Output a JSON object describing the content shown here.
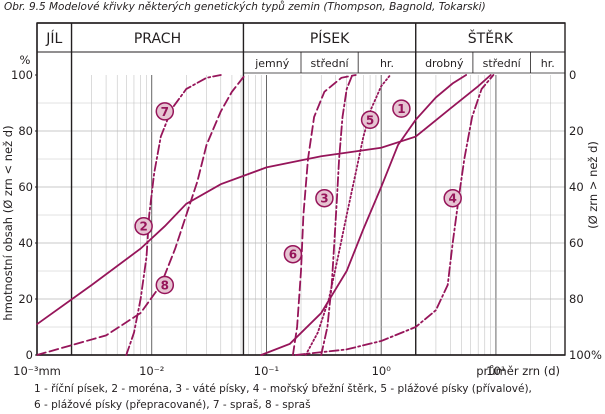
{
  "caption": "Obr. 9.5 Modelové křivky některých genetických typů zemin (Thompson, Bagnold, Tokarski)",
  "legend_lines": [
    "1 - říční písek, 2 - moréna, 3 - váté písky, 4 - mořský břežní štěrk, 5 - plážové písky (přívalové),",
    "6 - plážové písky (přepracované), 7 - spraš, 8 - spraš"
  ],
  "colors": {
    "curve": "#96155a",
    "grid": "#b8b8b8",
    "axis": "#231f20",
    "marker_fill": "#e6c4d2"
  },
  "chart_data": {
    "type": "line",
    "title": "",
    "xlabel": "průměr zrn (d)",
    "ylabel": "hmotnostní obsah (Ø zrn < než d)",
    "ylabel_right": "(Ø zrn > než d)",
    "x_scale": "log",
    "xlim": [
      0.001,
      40
    ],
    "ylim": [
      0,
      100
    ],
    "x_ticks": [
      {
        "value": 0.001,
        "label": "10⁻³mm"
      },
      {
        "value": 0.01,
        "label": "10⁻²"
      },
      {
        "value": 0.1,
        "label": "10⁻¹"
      },
      {
        "value": 1,
        "label": "10⁰"
      },
      {
        "value": 10,
        "label": "10¹"
      }
    ],
    "y_ticks": [
      0,
      20,
      40,
      60,
      80,
      100
    ],
    "y_ticks_right": [
      "100%",
      "80",
      "60",
      "40",
      "20",
      "0"
    ],
    "y_unit": "%",
    "grid": true,
    "fraction_header": {
      "main": [
        {
          "label": "JÍL",
          "from": 0.001,
          "to": 0.002
        },
        {
          "label": "PRACH",
          "from": 0.002,
          "to": 0.063
        },
        {
          "label": "PÍSEK",
          "from": 0.063,
          "to": 2
        },
        {
          "label": "ŠTĚRK",
          "from": 2,
          "to": 40
        }
      ],
      "sub": [
        {
          "label": "jemný",
          "from": 0.063,
          "to": 0.2
        },
        {
          "label": "střední",
          "from": 0.2,
          "to": 0.63
        },
        {
          "label": "hr.",
          "from": 0.63,
          "to": 2
        },
        {
          "label": "drobný",
          "from": 2,
          "to": 6.3
        },
        {
          "label": "střední",
          "from": 6.3,
          "to": 20
        },
        {
          "label": "hr.",
          "from": 20,
          "to": 40
        }
      ]
    },
    "series": [
      {
        "name": "1",
        "label": "říční písek",
        "style": "solid",
        "points": [
          [
            0.09,
            0
          ],
          [
            0.16,
            4
          ],
          [
            0.3,
            15
          ],
          [
            0.5,
            30
          ],
          [
            0.7,
            45
          ],
          [
            1.0,
            60
          ],
          [
            1.4,
            75
          ],
          [
            2.0,
            84
          ],
          [
            3.0,
            92
          ],
          [
            4.2,
            97
          ],
          [
            5.5,
            100
          ]
        ],
        "marker": {
          "x": 1.5,
          "y": 88
        }
      },
      {
        "name": "2",
        "label": "moréna",
        "style": "solid",
        "points": [
          [
            0.001,
            11
          ],
          [
            0.003,
            25
          ],
          [
            0.008,
            38
          ],
          [
            0.013,
            46
          ],
          [
            0.02,
            54
          ],
          [
            0.04,
            61
          ],
          [
            0.1,
            67
          ],
          [
            0.3,
            71
          ],
          [
            1.0,
            74
          ],
          [
            2.0,
            78
          ],
          [
            4.0,
            88
          ],
          [
            7.0,
            96
          ],
          [
            9.0,
            100
          ]
        ],
        "marker": {
          "x": 0.0085,
          "y": 46
        }
      },
      {
        "name": "3",
        "label": "váté písky",
        "style": "dashdot",
        "points": [
          [
            0.3,
            0
          ],
          [
            0.34,
            10
          ],
          [
            0.37,
            25
          ],
          [
            0.39,
            40
          ],
          [
            0.41,
            55
          ],
          [
            0.43,
            70
          ],
          [
            0.46,
            85
          ],
          [
            0.5,
            95
          ],
          [
            0.56,
            100
          ]
        ],
        "marker": {
          "x": 0.32,
          "y": 56
        }
      },
      {
        "name": "4",
        "label": "mořský břežní štěrk",
        "style": "dashdot",
        "points": [
          [
            0.18,
            0
          ],
          [
            0.5,
            2
          ],
          [
            1.0,
            5
          ],
          [
            2.0,
            10
          ],
          [
            3.0,
            16
          ],
          [
            3.8,
            25
          ],
          [
            4.2,
            40
          ],
          [
            4.7,
            55
          ],
          [
            5.3,
            70
          ],
          [
            6.2,
            85
          ],
          [
            7.5,
            95
          ],
          [
            9.5,
            100
          ]
        ],
        "marker": {
          "x": 4.2,
          "y": 56
        }
      },
      {
        "name": "5",
        "label": "plážové písky (přívalové)",
        "style": "dotted",
        "points": [
          [
            0.22,
            0
          ],
          [
            0.28,
            8
          ],
          [
            0.35,
            20
          ],
          [
            0.42,
            35
          ],
          [
            0.5,
            50
          ],
          [
            0.6,
            65
          ],
          [
            0.7,
            78
          ],
          [
            0.82,
            88
          ],
          [
            1.0,
            96
          ],
          [
            1.2,
            100
          ]
        ],
        "marker": {
          "x": 0.8,
          "y": 84
        }
      },
      {
        "name": "6",
        "label": "plážové písky (přepracované)",
        "style": "dashed",
        "points": [
          [
            0.17,
            0
          ],
          [
            0.185,
            10
          ],
          [
            0.2,
            30
          ],
          [
            0.21,
            50
          ],
          [
            0.23,
            70
          ],
          [
            0.26,
            85
          ],
          [
            0.32,
            94
          ],
          [
            0.45,
            99
          ],
          [
            0.6,
            100
          ]
        ],
        "marker": {
          "x": 0.17,
          "y": 36
        }
      },
      {
        "name": "7",
        "label": "spraš",
        "style": "dashdot",
        "points": [
          [
            0.006,
            0
          ],
          [
            0.007,
            8
          ],
          [
            0.008,
            20
          ],
          [
            0.009,
            35
          ],
          [
            0.0095,
            50
          ],
          [
            0.0105,
            65
          ],
          [
            0.012,
            78
          ],
          [
            0.015,
            88
          ],
          [
            0.02,
            95
          ],
          [
            0.03,
            99
          ],
          [
            0.04,
            100
          ]
        ],
        "marker": {
          "x": 0.013,
          "y": 87
        }
      },
      {
        "name": "8",
        "label": "spraš",
        "style": "dashed",
        "points": [
          [
            0.001,
            0
          ],
          [
            0.004,
            7
          ],
          [
            0.008,
            15
          ],
          [
            0.012,
            25
          ],
          [
            0.016,
            38
          ],
          [
            0.02,
            50
          ],
          [
            0.025,
            62
          ],
          [
            0.03,
            75
          ],
          [
            0.04,
            87
          ],
          [
            0.05,
            94
          ],
          [
            0.065,
            100
          ]
        ],
        "marker": {
          "x": 0.013,
          "y": 25
        }
      }
    ]
  }
}
